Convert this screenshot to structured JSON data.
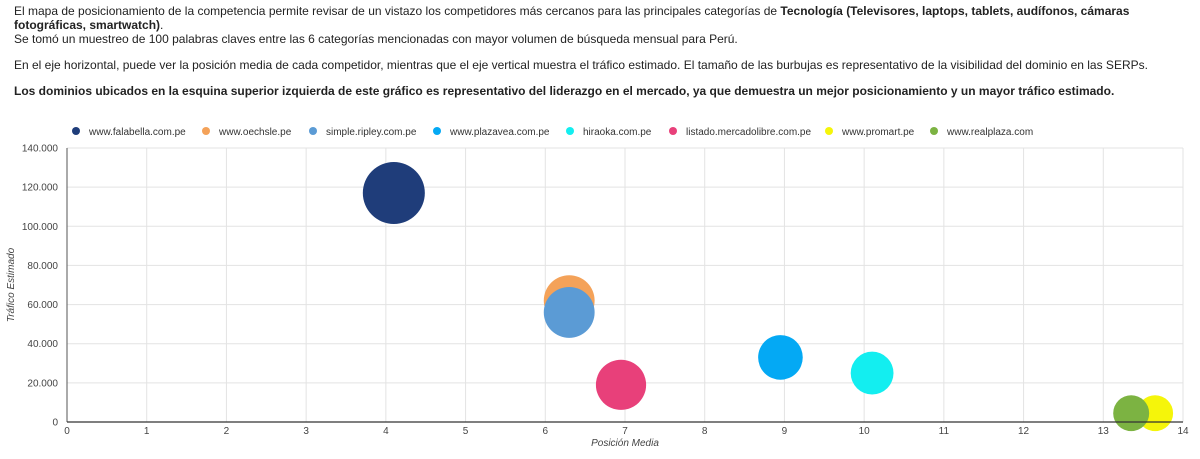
{
  "intro": {
    "p1_pre": "El mapa de posicionamiento de la competencia permite revisar de un vistazo los competidores más cercanos para las principales categorías de ",
    "p1_bold": "Tecnología (Televisores, laptops, tablets, audífonos, cámaras fotográficas, smartwatch)",
    "p1_post": ".",
    "p2": "Se tomó un muestreo de 100 palabras claves entre las 6 categorías mencionadas con mayor volumen de búsqueda mensual para Perú.",
    "p3": "En el eje horizontal, puede ver la posición media de cada competidor, mientras que el eje vertical muestra el tráfico estimado. El tamaño de las burbujas es representativo de la visibilidad del dominio en las SERPs.",
    "p4": "Los dominios ubicados en la esquina superior izquierda de este gráfico es representativo del liderazgo en el mercado, ya que demuestra un mejor posicionamiento y un mayor tráfico estimado."
  },
  "chart_data": {
    "type": "scatter",
    "xlabel": "Posición Media",
    "ylabel": "Tráfico Estimado",
    "xlim": [
      0,
      14
    ],
    "ylim": [
      0,
      140000
    ],
    "x_ticks": [
      "0",
      "1",
      "2",
      "3",
      "4",
      "5",
      "6",
      "7",
      "8",
      "9",
      "10",
      "11",
      "12",
      "13",
      "14"
    ],
    "y_ticks": [
      "0",
      "20.000",
      "40.000",
      "60.000",
      "80.000",
      "100.000",
      "120.000",
      "140.000"
    ],
    "grid": true,
    "legend_position": "top",
    "series": [
      {
        "name": "www.falabella.com.pe",
        "color": "#1f3d7a",
        "x": 4.1,
        "y": 117000,
        "size": 1.0
      },
      {
        "name": "www.oechsle.pe",
        "color": "#f4a259",
        "x": 6.3,
        "y": 62000,
        "size": 0.82
      },
      {
        "name": "simple.ripley.com.pe",
        "color": "#5b9bd5",
        "x": 6.3,
        "y": 56000,
        "size": 0.82
      },
      {
        "name": "www.plazavea.com.pe",
        "color": "#04a9f4",
        "x": 8.95,
        "y": 33000,
        "size": 0.72
      },
      {
        "name": "hiraoka.com.pe",
        "color": "#13eef0",
        "x": 10.1,
        "y": 25000,
        "size": 0.69
      },
      {
        "name": "listado.mercadolibre.com.pe",
        "color": "#e8407a",
        "x": 6.95,
        "y": 19000,
        "size": 0.81
      },
      {
        "name": "www.promart.pe",
        "color": "#f5f50a",
        "x": 13.65,
        "y": 4500,
        "size": 0.58
      },
      {
        "name": "www.realplaza.com",
        "color": "#7cb342",
        "x": 13.35,
        "y": 4500,
        "size": 0.58
      }
    ]
  }
}
